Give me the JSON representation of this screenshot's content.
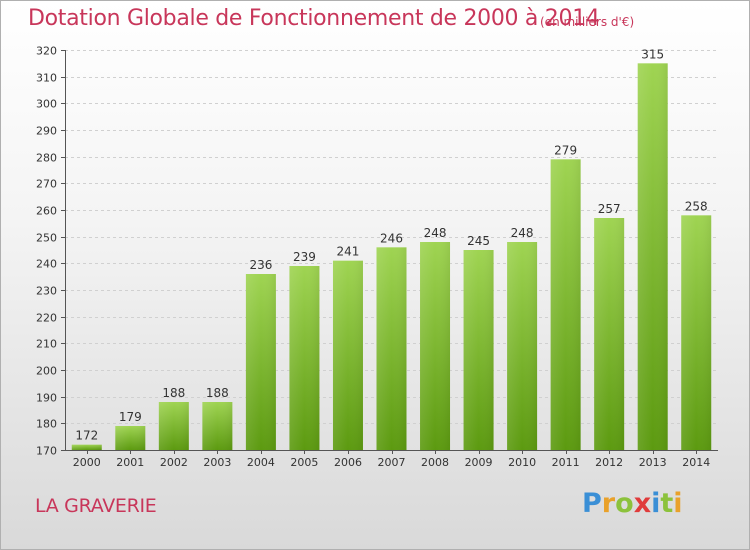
{
  "title": "Dotation Globale de Fonctionnement de 2000 à 2014",
  "subtitle": "(en milliers d'€)",
  "commune": "LA GRAVERIE",
  "logo": {
    "text": "Proxiti"
  },
  "colors": {
    "title": "#c8365a",
    "bar_top": "#9fd452",
    "bar_bottom": "#5c9a10"
  },
  "chart_data": {
    "type": "bar",
    "categories": [
      "2000",
      "2001",
      "2002",
      "2003",
      "2004",
      "2005",
      "2006",
      "2007",
      "2008",
      "2009",
      "2010",
      "2011",
      "2012",
      "2013",
      "2014"
    ],
    "values": [
      172,
      179,
      188,
      188,
      236,
      239,
      241,
      246,
      248,
      245,
      248,
      279,
      257,
      315,
      258
    ],
    "ylim": [
      170,
      320
    ],
    "yticks": [
      170,
      180,
      190,
      200,
      210,
      220,
      230,
      240,
      250,
      260,
      270,
      280,
      290,
      300,
      310,
      320
    ],
    "grid": true,
    "xlabel": "",
    "ylabel": ""
  }
}
